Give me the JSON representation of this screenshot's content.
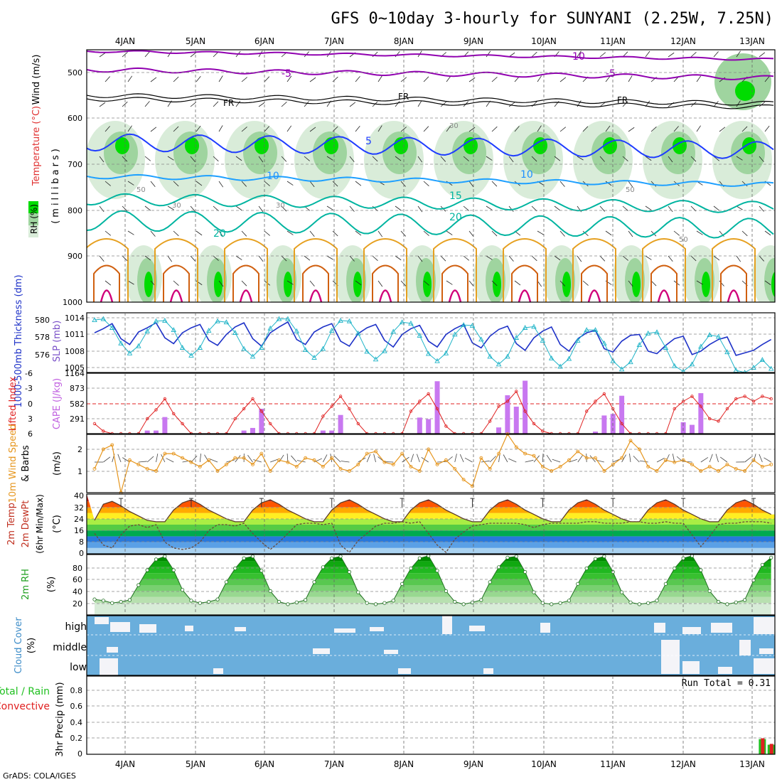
{
  "title": "GFS 0~10day 3-hourly for SUNYANI (2.25W, 7.25N)",
  "credit": "GrADS: COLA/IGES",
  "run_total": "Run Total = 0.31",
  "colors": {
    "rh_green": "#00dc00",
    "rh_light": "#d9ecd9",
    "rh_mid": "#9fd49f",
    "temp_purple": "#9000b0",
    "temp_blue": "#1e3cff",
    "temp_lightblue": "#1ea0ff",
    "temp_teal": "#00b4a0",
    "temp_orange": "#e6a020",
    "temp_magenta": "#d0007a",
    "thickness": "#1e32c8",
    "slp": "#20b4c8",
    "cape": "#c878f0",
    "li": "#e02020",
    "wind": "#e6961e",
    "cloud": "#6aaedc",
    "precip_total": "#20c020",
    "precip_conv": "#e02020"
  },
  "chart_data": {
    "type": "meteogram",
    "x_labels": [
      "4JAN",
      "5JAN",
      "6JAN",
      "7JAN",
      "8JAN",
      "9JAN",
      "10JAN",
      "11JAN",
      "12JAN",
      "13JAN"
    ],
    "panels": {
      "upper": {
        "ylabel_rh": "RH (%)",
        "ylabel_temp": "Temperature (°C)",
        "ylabel_wind": "Wind (m/s)",
        "ylabel_p": "(millibars)",
        "levels": [
          "500",
          "600",
          "700",
          "800",
          "900",
          "1000"
        ],
        "contour_labels": [
          "-10",
          "-5",
          "FR",
          "FR",
          "FR",
          "5",
          "10",
          "10",
          "15",
          "20",
          "20",
          "30",
          "30",
          "30",
          "50",
          "50",
          "50"
        ]
      },
      "thickness_slp": {
        "ylabel_thick": "1000-500mb Thickness (dm)",
        "ylabel_slp": "SLP (mb)",
        "thick_ticks": [
          "580",
          "578",
          "576"
        ],
        "slp_ticks": [
          "1014",
          "1011",
          "1008",
          "1005"
        ],
        "thickness": [
          578.2,
          578.7,
          579.3,
          577.5,
          576.8,
          578.3,
          578.8,
          579.4,
          577.6,
          576.9,
          578.2,
          578.8,
          579.2,
          577.3,
          576.7,
          578.0,
          578.9,
          579.4,
          577.5,
          576.6,
          578.2,
          578.9,
          579.5,
          577.4,
          576.8,
          578.3,
          578.9,
          579.3,
          577.2,
          576.6,
          578.1,
          578.8,
          579.2,
          577.3,
          576.5,
          578.0,
          578.7,
          579.1,
          577.2,
          576.5,
          578.0,
          578.7,
          579.2,
          577.0,
          576.4,
          577.8,
          578.6,
          579.0,
          576.9,
          576.1,
          577.6,
          578.4,
          578.9,
          576.8,
          576.0,
          577.5,
          578.2,
          578.5,
          576.3,
          575.9,
          577.2,
          577.9,
          578.0,
          576.0,
          575.7,
          576.7,
          577.5,
          577.8,
          575.6,
          576.0,
          576.8,
          577.4,
          577.7,
          575.5,
          575.8,
          576.1,
          576.8,
          577.4
        ],
        "slp": [
          1013.6,
          1013.8,
          1012.2,
          1009.4,
          1007.6,
          1008.9,
          1011.6,
          1013.4,
          1013.5,
          1011.8,
          1008.6,
          1007.2,
          1008.6,
          1011.7,
          1013.4,
          1013.2,
          1011.3,
          1008.4,
          1007.0,
          1008.6,
          1012.1,
          1013.8,
          1013.8,
          1011.6,
          1008.2,
          1006.8,
          1008.4,
          1011.7,
          1013.5,
          1013.4,
          1011.2,
          1007.9,
          1006.5,
          1008.0,
          1011.5,
          1013.2,
          1013.0,
          1010.8,
          1007.5,
          1006.2,
          1007.6,
          1011.0,
          1012.7,
          1012.6,
          1010.1,
          1007.0,
          1005.6,
          1007.0,
          1010.4,
          1012.2,
          1012.4,
          1009.9,
          1006.7,
          1005.2,
          1006.6,
          1009.9,
          1011.8,
          1011.8,
          1009.4,
          1006.2,
          1004.7,
          1006.0,
          1009.1,
          1011.2,
          1011.4,
          1008.6,
          1005.3,
          1004.3,
          1005.6,
          1008.8,
          1010.9,
          1010.6,
          1007.8,
          1004.5,
          1004.1,
          1005.0,
          1006.4,
          1004.8
        ]
      },
      "cape_li": {
        "ylabel_li": "Lifted Index",
        "ylabel_cape": "CAPE (J/kg)",
        "li_ticks": [
          "-6",
          "-3",
          "0",
          "3",
          "6"
        ],
        "cape_ticks": [
          "1164",
          "873",
          "582",
          "291"
        ],
        "cape": [
          0,
          0,
          0,
          0,
          0,
          0,
          60,
          60,
          320,
          0,
          0,
          0,
          0,
          0,
          0,
          0,
          0,
          60,
          110,
          480,
          0,
          0,
          0,
          0,
          0,
          0,
          60,
          60,
          360,
          0,
          0,
          0,
          0,
          0,
          0,
          0,
          0,
          310,
          280,
          1010,
          0,
          0,
          0,
          0,
          0,
          0,
          120,
          740,
          520,
          1020,
          0,
          0,
          0,
          0,
          0,
          0,
          0,
          40,
          350,
          380,
          730,
          0,
          0,
          0,
          0,
          0,
          0,
          220,
          170,
          780,
          0,
          0,
          0,
          0,
          0,
          0,
          0,
          0
        ],
        "li": [
          4,
          5.5,
          6,
          6,
          6,
          6,
          3,
          1.2,
          -1,
          2,
          4,
          6,
          6,
          6,
          6,
          6,
          3,
          1,
          -1,
          1.5,
          4,
          6,
          6,
          6,
          6,
          6,
          2.5,
          0.5,
          -1.5,
          1,
          4,
          6,
          6,
          6,
          6,
          6,
          1.5,
          -0.5,
          -2,
          1,
          4.5,
          6,
          6,
          6,
          6,
          3.5,
          0.5,
          -0.5,
          -2.5,
          1.5,
          4,
          5.5,
          6,
          6,
          6,
          6,
          1.5,
          -0.5,
          -2,
          1,
          4,
          6,
          6,
          6,
          6,
          6,
          1,
          -0.5,
          -1.5,
          0.5,
          3,
          3.5,
          1,
          -1,
          -1.5,
          -0.5,
          -1.5,
          -1
        ]
      },
      "wind10m": {
        "ylabel_speed": "10m Wind Speed",
        "ylabel_barbs": "& Barbs",
        "ylabel_unit": "(m/s)",
        "ticks": [
          "2",
          "1"
        ],
        "speed": [
          1.1,
          2.0,
          2.2,
          0.0,
          1.5,
          1.3,
          1.1,
          1.0,
          1.8,
          1.8,
          1.6,
          1.4,
          1.2,
          1.5,
          1.0,
          1.3,
          1.6,
          1.6,
          1.3,
          1.8,
          1.0,
          1.5,
          1.4,
          1.2,
          1.6,
          1.5,
          1.2,
          1.6,
          1.1,
          1.0,
          1.3,
          1.8,
          1.9,
          1.4,
          1.3,
          1.8,
          1.2,
          1.0,
          2.0,
          1.3,
          1.5,
          1.1,
          0.6,
          0.3,
          1.6,
          1.1,
          1.8,
          2.7,
          2.1,
          1.8,
          1.7,
          1.2,
          1.0,
          1.2,
          1.5,
          1.9,
          1.6,
          1.6,
          1.0,
          1.3,
          1.6,
          2.4,
          2.0,
          1.2,
          1.0,
          1.5,
          1.4,
          1.5,
          1.3,
          1.0,
          1.2,
          1.0,
          1.3,
          1.1,
          1.0,
          1.5,
          1.2,
          1.3
        ]
      },
      "temp2m": {
        "ylabel_a": "2m Temp",
        "ylabel_b": "2m DewPt",
        "ylabel_c": "(6hr Min/Max)",
        "ylabel_unit": "(°C)",
        "ticks": [
          "40",
          "32",
          "24",
          "16",
          "8",
          "0"
        ],
        "temp": [
          23,
          34,
          36,
          33,
          29,
          26,
          23,
          22,
          22,
          30,
          35,
          37,
          34,
          30,
          27,
          24,
          22,
          22,
          30,
          35,
          37,
          34,
          30,
          27,
          24,
          22,
          22,
          30,
          35,
          37,
          34,
          30,
          27,
          24,
          22,
          22,
          30,
          35,
          37,
          34,
          30,
          27,
          24,
          22,
          22,
          30,
          35,
          37,
          34,
          30,
          27,
          24,
          22,
          22,
          30,
          35,
          37,
          34,
          30,
          27,
          24,
          22,
          22,
          30,
          35,
          37,
          34,
          30,
          27,
          24,
          22,
          22,
          30,
          35,
          37,
          34,
          30,
          27
        ],
        "dewpt": [
          14,
          6,
          4,
          13,
          19,
          20,
          18,
          20,
          8,
          4,
          3,
          4,
          8,
          16,
          20,
          20,
          19,
          21,
          14,
          8,
          3,
          8,
          14,
          20,
          21,
          21,
          20,
          21,
          6,
          1,
          9,
          14,
          19,
          21,
          21,
          22,
          21,
          22,
          14,
          6,
          1,
          10,
          15,
          19,
          20,
          21,
          21,
          21,
          21,
          20,
          18,
          20,
          21,
          21,
          21,
          21,
          22,
          22,
          21,
          21,
          21,
          22,
          22,
          21,
          21,
          22,
          21,
          21,
          13,
          5,
          12,
          20,
          21,
          21,
          22,
          22,
          22,
          21
        ]
      },
      "rh2m": {
        "ylabel": "2m RH",
        "ylabel_unit": "(%)",
        "ticks": [
          "80",
          "60",
          "40",
          "20"
        ],
        "values": [
          26,
          24,
          20,
          22,
          25,
          50,
          75,
          93,
          98,
          75,
          42,
          24,
          20,
          22,
          26,
          55,
          78,
          95,
          98,
          74,
          40,
          22,
          18,
          21,
          25,
          55,
          80,
          95,
          98,
          72,
          38,
          20,
          18,
          20,
          24,
          52,
          78,
          95,
          99,
          74,
          40,
          22,
          18,
          21,
          25,
          55,
          80,
          96,
          98,
          72,
          38,
          20,
          18,
          20,
          24,
          52,
          78,
          94,
          98,
          72,
          38,
          21,
          18,
          20,
          24,
          52,
          78,
          95,
          99,
          75,
          40,
          22,
          18,
          21,
          25,
          58,
          84,
          96
        ]
      },
      "cloud": {
        "ylabel": "Cloud Cover",
        "ylabel_unit": "(%)",
        "levels": [
          "high",
          "middle",
          "low"
        ]
      },
      "precip": {
        "ylabel_a": "Total / Rain",
        "ylabel_b": "Convective",
        "ylabel_unit": "3hr Precip (mm)",
        "ticks": [
          "0.8",
          "0.6",
          "0.4",
          "0.2",
          "0"
        ],
        "total": [
          0,
          0,
          0,
          0,
          0,
          0,
          0,
          0,
          0,
          0,
          0,
          0,
          0,
          0,
          0,
          0,
          0,
          0,
          0,
          0,
          0,
          0,
          0,
          0,
          0,
          0,
          0,
          0,
          0,
          0,
          0,
          0,
          0,
          0,
          0,
          0,
          0,
          0,
          0,
          0,
          0,
          0,
          0,
          0,
          0,
          0,
          0,
          0,
          0,
          0,
          0,
          0,
          0,
          0,
          0,
          0,
          0,
          0,
          0,
          0,
          0,
          0,
          0,
          0,
          0,
          0,
          0,
          0,
          0,
          0,
          0,
          0,
          0,
          0,
          0,
          0,
          0.19,
          0.12
        ],
        "convective": [
          0,
          0,
          0,
          0,
          0,
          0,
          0,
          0,
          0,
          0,
          0,
          0,
          0,
          0,
          0,
          0,
          0,
          0,
          0,
          0,
          0,
          0,
          0,
          0,
          0,
          0,
          0,
          0,
          0,
          0,
          0,
          0,
          0,
          0,
          0,
          0,
          0,
          0,
          0,
          0,
          0,
          0,
          0,
          0,
          0,
          0,
          0,
          0,
          0,
          0,
          0,
          0,
          0,
          0,
          0,
          0,
          0,
          0,
          0,
          0,
          0,
          0,
          0,
          0,
          0,
          0,
          0,
          0,
          0,
          0,
          0,
          0,
          0,
          0,
          0,
          0,
          0.2,
          0.13
        ]
      }
    }
  }
}
